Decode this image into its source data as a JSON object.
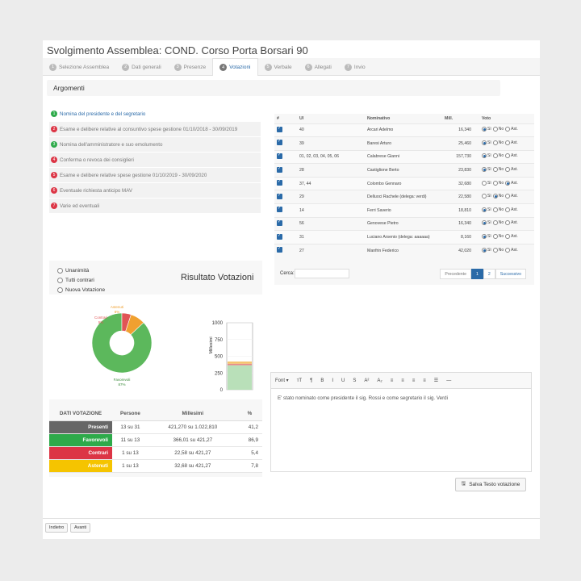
{
  "page_title": "Svolgimento Assemblea: COND. Corso Porta Borsari 90",
  "steps": [
    {
      "num": "1",
      "label": "Selezione Assemblea"
    },
    {
      "num": "2",
      "label": "Dati generali"
    },
    {
      "num": "3",
      "label": "Presenze"
    },
    {
      "num": "4",
      "label": "Votazioni"
    },
    {
      "num": "5",
      "label": "Verbale"
    },
    {
      "num": "6",
      "label": "Allegati"
    },
    {
      "num": "7",
      "label": "Invio"
    }
  ],
  "section_title": "Argomenti",
  "agenda": [
    {
      "num": "1",
      "label": "Nomina del presidente e del segretario",
      "color": "#2eaa4a"
    },
    {
      "num": "2",
      "label": "Esame e delibere relative al consuntivo spese gestione 01/10/2018 - 30/09/2019",
      "color": "#dc3545"
    },
    {
      "num": "3",
      "label": "Nomina dell'amministratore e suo emolumento",
      "color": "#2eaa4a"
    },
    {
      "num": "4",
      "label": "Conferma o revoca dei consiglieri",
      "color": "#dc3545"
    },
    {
      "num": "5",
      "label": "Esame e delibere relative spese gestione 01/10/2019 - 30/09/2020",
      "color": "#dc3545"
    },
    {
      "num": "6",
      "label": "Eventuale richiesta anticipo MAV",
      "color": "#dc3545"
    },
    {
      "num": "7",
      "label": "Varie ed eventuali",
      "color": "#dc3545"
    }
  ],
  "vote_options": [
    "Unanimità",
    "Tutti contrari",
    "Nuova Votazione"
  ],
  "result_title": "Risultato Votazioni",
  "chart_data": [
    {
      "type": "pie",
      "categories": [
        "Favorevoli",
        "Contrari",
        "Astenuti"
      ],
      "values": [
        87,
        5,
        8
      ],
      "labels": [
        "Favorevoli 87%",
        "Contrari 5%",
        "Astenuti 8%"
      ],
      "colors": [
        "#5cb85c",
        "#e05555",
        "#f0a030"
      ]
    },
    {
      "type": "bar",
      "ylabel": "Millesimi",
      "yticks": [
        "1000",
        "750",
        "500",
        "250",
        "0"
      ],
      "ylim": [
        0,
        1000
      ],
      "series": [
        {
          "values": [
            366.01
          ]
        },
        {
          "values": [
            22.58
          ]
        },
        {
          "values": [
            32.68
          ]
        }
      ],
      "colors": [
        "#b9e0b9",
        "#e88a8a",
        "#f5c46e"
      ]
    }
  ],
  "vote_table": {
    "headers": [
      "DATI VOTAZIONE",
      "Persone",
      "Millesimi",
      "%"
    ],
    "rows": [
      {
        "label": "Presenti",
        "persone": "13 su 31",
        "millesimi": "421,270 su 1.022,810",
        "pct": "41,2",
        "color": "#666666"
      },
      {
        "label": "Favorevoli",
        "persone": "11 su 13",
        "millesimi": "366,01 su 421,27",
        "pct": "86,9",
        "color": "#2eaa4a"
      },
      {
        "label": "Contrari",
        "persone": "1 su 13",
        "millesimi": "22,58 su 421,27",
        "pct": "5,4",
        "color": "#dc3545"
      },
      {
        "label": "Astenuti",
        "persone": "1 su 13",
        "millesimi": "32,68 su 421,27",
        "pct": "7,8",
        "color": "#f5c400"
      }
    ]
  },
  "grid": {
    "headers": [
      "#",
      "UI",
      "Nominativo",
      "Mill.",
      "Voto"
    ],
    "vote_labels": [
      "Sì",
      "No",
      "Ast."
    ],
    "rows": [
      {
        "ui": "40",
        "name": "Arcari Adelmo",
        "mill": "16,340",
        "vote": 0
      },
      {
        "ui": "39",
        "name": "Baresi Arturo",
        "mill": "25,460",
        "vote": 0
      },
      {
        "ui": "01, 02, 03, 04, 05, 06",
        "name": "Calabrese Gianni",
        "mill": "157,730",
        "vote": 0
      },
      {
        "ui": "28",
        "name": "Castiglione Berto",
        "mill": "23,830",
        "vote": 0
      },
      {
        "ui": "37, 44",
        "name": "Colombo Gennaro",
        "mill": "32,680",
        "vote": 2
      },
      {
        "ui": "29",
        "name": "Delluoci Rachele (delega: verdi)",
        "mill": "22,580",
        "vote": 1
      },
      {
        "ui": "14",
        "name": "Ferri Saverio",
        "mill": "18,810",
        "vote": 0
      },
      {
        "ui": "56",
        "name": "Genovese Pietro",
        "mill": "16,340",
        "vote": 0
      },
      {
        "ui": "31",
        "name": "Luciano Arsenio (delega: aaaaaa)",
        "mill": "8,160",
        "vote": 0
      },
      {
        "ui": "27",
        "name": "Manfrin Federico",
        "mill": "42,020",
        "vote": 0
      }
    ],
    "search_label": "Cerca:",
    "pagination": [
      "Precedente",
      "1",
      "2",
      "Successivo"
    ]
  },
  "editor": {
    "toolbar": [
      "Font ▾",
      "тТ",
      "¶",
      "B",
      "I",
      "U",
      "S",
      "A²",
      "A₂",
      "≡",
      "≡",
      "≡",
      "≡",
      "☰",
      "—"
    ],
    "text": "E' stato nominato come presidente il sig. Rossi e come segretario il sig. Verdi"
  },
  "save_button": "Salva Testo votazione",
  "footer": {
    "back": "Indietro",
    "next": "Avanti"
  }
}
